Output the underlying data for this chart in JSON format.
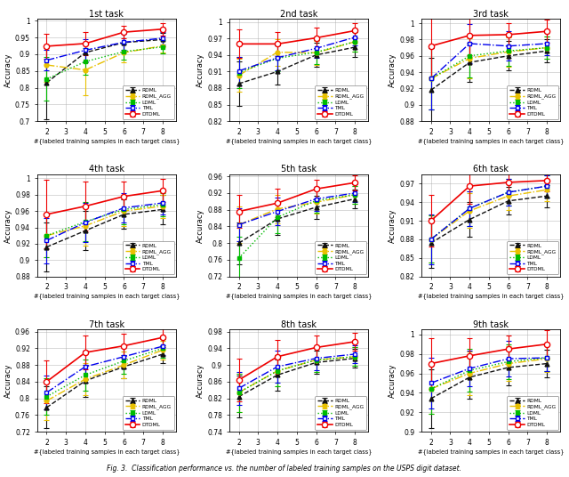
{
  "x": [
    2,
    4,
    6,
    8
  ],
  "tasks": [
    {
      "title": "1st task",
      "ylim": [
        0.7,
        1.005
      ],
      "yticks": [
        0.7,
        0.75,
        0.8,
        0.85,
        0.9,
        0.95,
        1.0
      ],
      "ytick_labels": [
        "0.7",
        "0.75",
        "0.8",
        "0.85",
        "0.9",
        "0.95",
        "1"
      ],
      "RDML": {
        "y": [
          0.815,
          0.905,
          0.935,
          0.944
        ],
        "yerr": [
          0.11,
          0.03,
          0.028,
          0.02
        ]
      },
      "RDML_AGG": {
        "y": [
          0.868,
          0.853,
          0.905,
          0.925
        ],
        "yerr": [
          0.05,
          0.075,
          0.028,
          0.02
        ]
      },
      "LDML": {
        "y": [
          0.826,
          0.878,
          0.908,
          0.922
        ],
        "yerr": [
          0.065,
          0.04,
          0.024,
          0.02
        ]
      },
      "TML": {
        "y": [
          0.882,
          0.912,
          0.936,
          0.948
        ],
        "yerr": [
          0.03,
          0.034,
          0.024,
          0.018
        ]
      },
      "DTDML": {
        "y": [
          0.924,
          0.932,
          0.966,
          0.975
        ],
        "yerr": [
          0.038,
          0.034,
          0.018,
          0.018
        ]
      }
    },
    {
      "title": "2nd task",
      "ylim": [
        0.82,
        1.005
      ],
      "yticks": [
        0.82,
        0.85,
        0.88,
        0.91,
        0.94,
        0.97,
        1.0
      ],
      "ytick_labels": [
        "0.82",
        "0.85",
        "0.88",
        "0.91",
        "0.94",
        "0.97",
        "1"
      ],
      "RDML": {
        "y": [
          0.888,
          0.91,
          0.94,
          0.954
        ],
        "yerr": [
          0.04,
          0.024,
          0.022,
          0.018
        ]
      },
      "RDML_AGG": {
        "y": [
          0.903,
          0.945,
          0.944,
          0.964
        ],
        "yerr": [
          0.03,
          0.024,
          0.022,
          0.018
        ]
      },
      "LDML": {
        "y": [
          0.908,
          0.934,
          0.945,
          0.964
        ],
        "yerr": [
          0.028,
          0.024,
          0.022,
          0.018
        ]
      },
      "TML": {
        "y": [
          0.911,
          0.935,
          0.952,
          0.972
        ],
        "yerr": [
          0.026,
          0.022,
          0.018,
          0.014
        ]
      },
      "DTDML": {
        "y": [
          0.96,
          0.96,
          0.971,
          0.984
        ],
        "yerr": [
          0.026,
          0.022,
          0.018,
          0.014
        ]
      }
    },
    {
      "title": "3rd task",
      "ylim": [
        0.88,
        1.005
      ],
      "yticks": [
        0.88,
        0.9,
        0.92,
        0.94,
        0.96,
        0.98,
        1.0
      ],
      "ytick_labels": [
        "0.88",
        "0.9",
        "0.92",
        "0.94",
        "0.96",
        "0.98",
        "1"
      ],
      "RDML": {
        "y": [
          0.918,
          0.952,
          0.96,
          0.966
        ],
        "yerr": [
          0.04,
          0.024,
          0.018,
          0.014
        ]
      },
      "RDML_AGG": {
        "y": [
          0.932,
          0.957,
          0.965,
          0.97
        ],
        "yerr": [
          0.038,
          0.024,
          0.018,
          0.014
        ]
      },
      "LDML": {
        "y": [
          0.932,
          0.96,
          0.966,
          0.97
        ],
        "yerr": [
          0.038,
          0.026,
          0.018,
          0.014
        ]
      },
      "TML": {
        "y": [
          0.932,
          0.975,
          0.972,
          0.975
        ],
        "yerr": [
          0.038,
          0.024,
          0.018,
          0.014
        ]
      },
      "DTDML": {
        "y": [
          0.972,
          0.985,
          0.986,
          0.99
        ],
        "yerr": [
          0.038,
          0.024,
          0.014,
          0.014
        ]
      }
    },
    {
      "title": "4th task",
      "ylim": [
        0.88,
        1.005
      ],
      "yticks": [
        0.88,
        0.9,
        0.92,
        0.94,
        0.96,
        0.98,
        1.0
      ],
      "ytick_labels": [
        "0.88",
        "0.9",
        "0.92",
        "0.94",
        "0.96",
        "0.98",
        "1"
      ],
      "RDML": {
        "y": [
          0.916,
          0.936,
          0.956,
          0.962
        ],
        "yerr": [
          0.03,
          0.024,
          0.018,
          0.018
        ]
      },
      "RDML_AGG": {
        "y": [
          0.93,
          0.942,
          0.96,
          0.966
        ],
        "yerr": [
          0.026,
          0.024,
          0.018,
          0.014
        ]
      },
      "LDML": {
        "y": [
          0.93,
          0.947,
          0.962,
          0.968
        ],
        "yerr": [
          0.026,
          0.024,
          0.018,
          0.014
        ]
      },
      "TML": {
        "y": [
          0.924,
          0.946,
          0.964,
          0.97
        ],
        "yerr": [
          0.028,
          0.024,
          0.018,
          0.014
        ]
      },
      "DTDML": {
        "y": [
          0.956,
          0.966,
          0.978,
          0.985
        ],
        "yerr": [
          0.042,
          0.03,
          0.018,
          0.014
        ]
      }
    },
    {
      "title": "5th task",
      "ylim": [
        0.72,
        0.965
      ],
      "yticks": [
        0.72,
        0.76,
        0.8,
        0.84,
        0.88,
        0.92,
        0.96
      ],
      "ytick_labels": [
        "0.72",
        "0.76",
        "0.8",
        "0.84",
        "0.88",
        "0.92",
        "0.96"
      ],
      "RDML": {
        "y": [
          0.8,
          0.858,
          0.886,
          0.906
        ],
        "yerr": [
          0.05,
          0.038,
          0.028,
          0.022
        ]
      },
      "RDML_AGG": {
        "y": [
          0.844,
          0.882,
          0.898,
          0.916
        ],
        "yerr": [
          0.044,
          0.034,
          0.028,
          0.022
        ]
      },
      "LDML": {
        "y": [
          0.764,
          0.862,
          0.902,
          0.916
        ],
        "yerr": [
          0.052,
          0.038,
          0.028,
          0.022
        ]
      },
      "TML": {
        "y": [
          0.844,
          0.876,
          0.906,
          0.92
        ],
        "yerr": [
          0.04,
          0.034,
          0.028,
          0.022
        ]
      },
      "DTDML": {
        "y": [
          0.876,
          0.896,
          0.93,
          0.945
        ],
        "yerr": [
          0.04,
          0.034,
          0.022,
          0.018
        ]
      }
    },
    {
      "title": "6th task",
      "ylim": [
        0.82,
        0.985
      ],
      "yticks": [
        0.82,
        0.85,
        0.88,
        0.91,
        0.94,
        0.97
      ],
      "ytick_labels": [
        "0.82",
        "0.85",
        "0.88",
        "0.91",
        "0.94",
        "0.97"
      ],
      "RDML": {
        "y": [
          0.874,
          0.912,
          0.942,
          0.95
        ],
        "yerr": [
          0.04,
          0.028,
          0.022,
          0.018
        ]
      },
      "RDML_AGG": {
        "y": [
          0.88,
          0.926,
          0.95,
          0.96
        ],
        "yerr": [
          0.038,
          0.028,
          0.022,
          0.018
        ]
      },
      "LDML": {
        "y": [
          0.88,
          0.93,
          0.956,
          0.966
        ],
        "yerr": [
          0.038,
          0.028,
          0.022,
          0.018
        ]
      },
      "TML": {
        "y": [
          0.88,
          0.93,
          0.956,
          0.966
        ],
        "yerr": [
          0.04,
          0.028,
          0.022,
          0.018
        ]
      },
      "DTDML": {
        "y": [
          0.91,
          0.966,
          0.972,
          0.975
        ],
        "yerr": [
          0.042,
          0.028,
          0.022,
          0.018
        ]
      }
    },
    {
      "title": "7th task",
      "ylim": [
        0.72,
        0.965
      ],
      "yticks": [
        0.72,
        0.76,
        0.8,
        0.84,
        0.88,
        0.92,
        0.96
      ],
      "ytick_labels": [
        "0.72",
        "0.76",
        "0.8",
        "0.84",
        "0.88",
        "0.92",
        "0.96"
      ],
      "RDML": {
        "y": [
          0.778,
          0.842,
          0.876,
          0.906
        ],
        "yerr": [
          0.05,
          0.038,
          0.028,
          0.022
        ]
      },
      "RDML_AGG": {
        "y": [
          0.794,
          0.846,
          0.88,
          0.916
        ],
        "yerr": [
          0.046,
          0.038,
          0.032,
          0.022
        ]
      },
      "LDML": {
        "y": [
          0.804,
          0.856,
          0.89,
          0.92
        ],
        "yerr": [
          0.044,
          0.038,
          0.032,
          0.022
        ]
      },
      "TML": {
        "y": [
          0.814,
          0.876,
          0.9,
          0.925
        ],
        "yerr": [
          0.04,
          0.038,
          0.028,
          0.022
        ]
      },
      "DTDML": {
        "y": [
          0.84,
          0.91,
          0.926,
          0.946
        ],
        "yerr": [
          0.052,
          0.04,
          0.028,
          0.022
        ]
      }
    },
    {
      "title": "8th task",
      "ylim": [
        0.74,
        0.985
      ],
      "yticks": [
        0.74,
        0.78,
        0.82,
        0.86,
        0.9,
        0.94,
        0.98
      ],
      "ytick_labels": [
        "0.74",
        "0.78",
        "0.82",
        "0.86",
        "0.9",
        "0.94",
        "0.98"
      ],
      "RDML": {
        "y": [
          0.824,
          0.876,
          0.906,
          0.916
        ],
        "yerr": [
          0.05,
          0.038,
          0.028,
          0.022
        ]
      },
      "RDML_AGG": {
        "y": [
          0.834,
          0.886,
          0.912,
          0.92
        ],
        "yerr": [
          0.046,
          0.038,
          0.028,
          0.022
        ]
      },
      "LDML": {
        "y": [
          0.834,
          0.886,
          0.912,
          0.92
        ],
        "yerr": [
          0.046,
          0.038,
          0.028,
          0.022
        ]
      },
      "TML": {
        "y": [
          0.844,
          0.896,
          0.916,
          0.926
        ],
        "yerr": [
          0.04,
          0.038,
          0.028,
          0.022
        ]
      },
      "DTDML": {
        "y": [
          0.864,
          0.92,
          0.942,
          0.956
        ],
        "yerr": [
          0.052,
          0.04,
          0.028,
          0.022
        ]
      }
    },
    {
      "title": "9th task",
      "ylim": [
        0.9,
        1.005
      ],
      "yticks": [
        0.9,
        0.92,
        0.94,
        0.96,
        0.98,
        1.0
      ],
      "ytick_labels": [
        "0.9",
        "0.92",
        "0.94",
        "0.96",
        "0.98",
        "1"
      ],
      "RDML": {
        "y": [
          0.934,
          0.956,
          0.966,
          0.97
        ],
        "yerr": [
          0.03,
          0.022,
          0.018,
          0.014
        ]
      },
      "RDML_AGG": {
        "y": [
          0.944,
          0.96,
          0.97,
          0.975
        ],
        "yerr": [
          0.026,
          0.022,
          0.018,
          0.014
        ]
      },
      "LDML": {
        "y": [
          0.944,
          0.963,
          0.972,
          0.976
        ],
        "yerr": [
          0.026,
          0.022,
          0.018,
          0.014
        ]
      },
      "TML": {
        "y": [
          0.95,
          0.965,
          0.975,
          0.976
        ],
        "yerr": [
          0.026,
          0.018,
          0.018,
          0.014
        ]
      },
      "DTDML": {
        "y": [
          0.97,
          0.978,
          0.985,
          0.99
        ],
        "yerr": [
          0.026,
          0.018,
          0.014,
          0.014
        ]
      }
    }
  ],
  "methods": [
    "RDML",
    "RDML_AGG",
    "LDML",
    "TML",
    "DTDML"
  ],
  "xlabel": "#{labeled training samples in each target class}",
  "ylabel": "Accuracy",
  "figure_caption": "Fig. 3.  Classification performance vs. the number of labeled training samples on the USPS digit dataset."
}
